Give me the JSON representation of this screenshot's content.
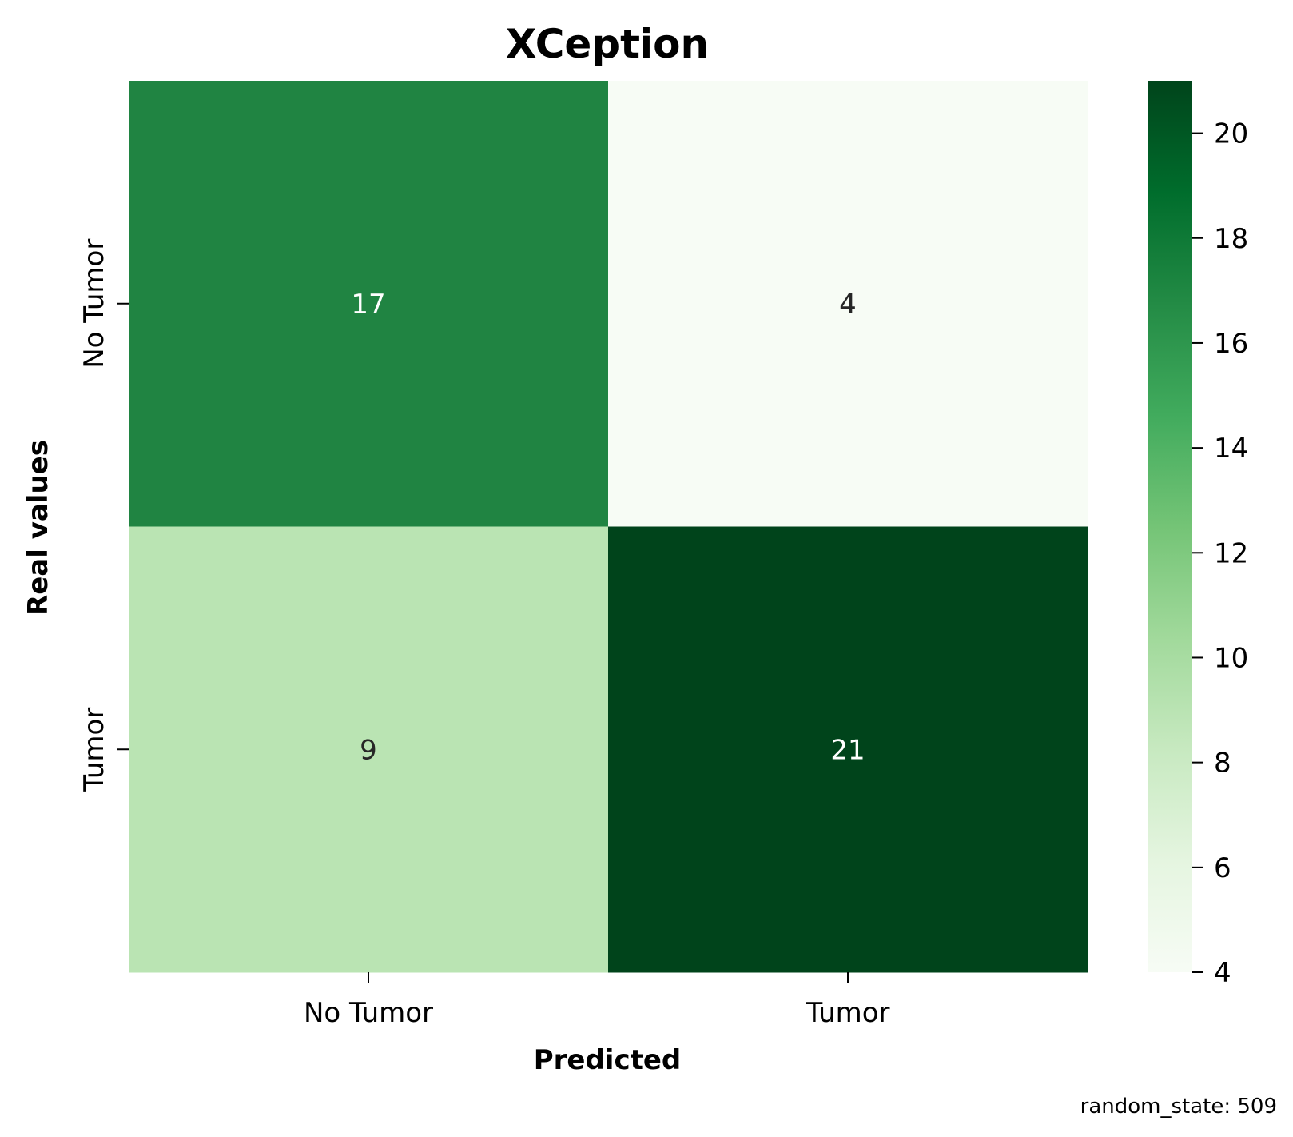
{
  "chart_data": {
    "type": "heatmap",
    "title": "XCeption",
    "xlabel": "Predicted",
    "ylabel": "Real values",
    "x_categories": [
      "No Tumor",
      "Tumor"
    ],
    "y_categories": [
      "No Tumor",
      "Tumor"
    ],
    "values": [
      [
        17,
        4
      ],
      [
        9,
        21
      ]
    ],
    "colormap": "Greens",
    "colorbar": {
      "range": [
        4,
        21
      ],
      "ticks": [
        4,
        6,
        8,
        10,
        12,
        14,
        16,
        18,
        20
      ]
    },
    "cell_colors": [
      [
        "#208442",
        "#f7fcf5"
      ],
      [
        "#bae4b3",
        "#00441b"
      ]
    ],
    "cell_text_colors": [
      [
        "#ffffff",
        "#262626"
      ],
      [
        "#262626",
        "#ffffff"
      ]
    ],
    "footnote": "random_state: 509"
  }
}
